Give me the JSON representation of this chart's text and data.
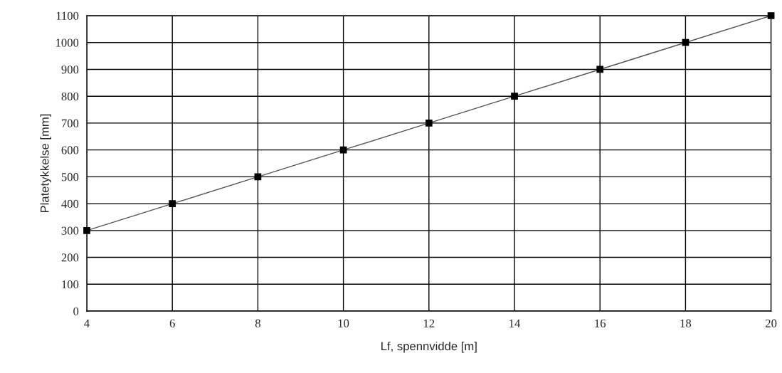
{
  "chart_data": {
    "type": "line",
    "xlabel": "Lf, spennvidde [m]",
    "ylabel": "Platetykkelse [mm]",
    "x": [
      4,
      6,
      8,
      10,
      12,
      14,
      16,
      18,
      20
    ],
    "series": [
      {
        "color": "#000000",
        "values": [
          300,
          400,
          500,
          600,
          700,
          800,
          900,
          1000,
          1100
        ]
      }
    ],
    "xlim": [
      4,
      20
    ],
    "xticks": [
      4,
      6,
      8,
      10,
      12,
      14,
      16,
      18,
      20
    ],
    "ylim": [
      0,
      1100
    ],
    "yticks": [
      0,
      100,
      200,
      300,
      400,
      500,
      600,
      700,
      800,
      900,
      1000,
      1100
    ],
    "grid": true,
    "marker": "square",
    "line_style": "solid"
  }
}
